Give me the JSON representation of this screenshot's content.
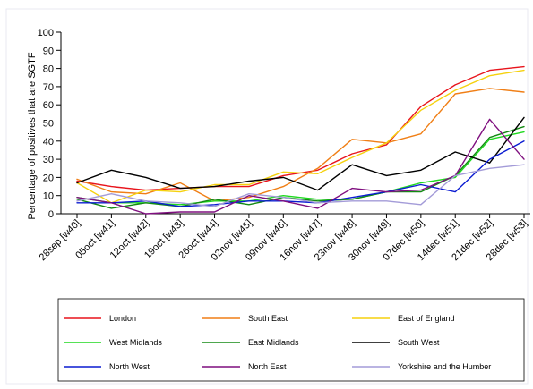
{
  "chart_data": {
    "type": "line",
    "title": "",
    "xlabel": "",
    "ylabel": "Percentage of positives that are SGTF",
    "ylim": [
      0,
      100
    ],
    "yticks": [
      0,
      10,
      20,
      30,
      40,
      50,
      60,
      70,
      80,
      90,
      100
    ],
    "grid": false,
    "legend_position": "bottom",
    "x": [
      "28sep [w40]",
      "05oct [w41]",
      "12oct [w42]",
      "19oct [w43]",
      "26oct [w44]",
      "02nov [w45]",
      "09nov [w46]",
      "16nov [w47]",
      "23nov [w48]",
      "30nov [w49]",
      "07dec [w50]",
      "14dec [w51]",
      "21dec [w52]",
      "28dec [w53]"
    ],
    "series": [
      {
        "name": "London",
        "color": "#e8141c",
        "values": [
          18,
          15,
          13,
          14,
          15,
          15,
          21,
          24,
          33,
          38,
          59,
          71,
          79,
          81
        ]
      },
      {
        "name": "South East",
        "color": "#f07f16",
        "values": [
          19,
          12,
          11,
          17,
          7,
          9,
          15,
          25,
          41,
          39,
          44,
          66,
          69,
          67
        ]
      },
      {
        "name": "East of England",
        "color": "#f5d10e",
        "values": [
          17,
          6,
          13,
          12,
          16,
          16,
          23,
          22,
          31,
          39,
          57,
          68,
          76,
          79
        ]
      },
      {
        "name": "West Midlands",
        "color": "#1ed91e",
        "values": [
          9,
          6,
          6,
          5,
          7,
          7,
          10,
          8,
          8,
          12,
          17,
          20,
          41,
          45
        ]
      },
      {
        "name": "East Midlands",
        "color": "#138a13",
        "values": [
          8,
          3,
          6,
          4,
          8,
          5,
          9,
          7,
          8,
          12,
          12,
          21,
          42,
          48
        ]
      },
      {
        "name": "South West",
        "color": "#000000",
        "values": [
          17,
          24,
          20,
          14,
          15,
          18,
          20,
          13,
          27,
          21,
          24,
          34,
          28,
          53
        ]
      },
      {
        "name": "North West",
        "color": "#0a1bd1",
        "values": [
          6,
          6,
          7,
          4,
          5,
          7,
          7,
          6,
          9,
          12,
          16,
          12,
          30,
          40
        ]
      },
      {
        "name": "North East",
        "color": "#7f0f7f",
        "values": [
          9,
          6,
          0,
          1,
          1,
          10,
          7,
          3,
          14,
          12,
          13,
          21,
          52,
          30
        ]
      },
      {
        "name": "Yorkshire and the Humber",
        "color": "#a39bd8",
        "values": [
          7,
          11,
          7,
          6,
          4,
          11,
          9,
          6,
          7,
          7,
          5,
          21,
          25,
          27
        ]
      }
    ]
  }
}
